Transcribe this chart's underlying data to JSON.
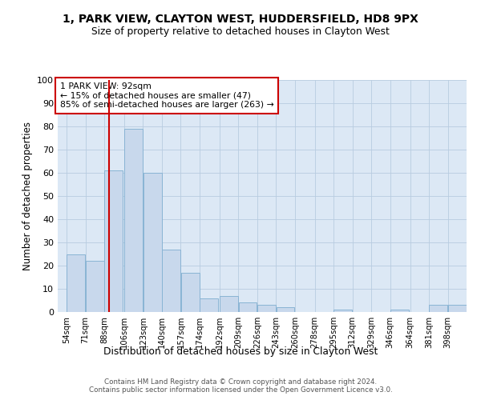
{
  "title1": "1, PARK VIEW, CLAYTON WEST, HUDDERSFIELD, HD8 9PX",
  "title2": "Size of property relative to detached houses in Clayton West",
  "xlabel": "Distribution of detached houses by size in Clayton West",
  "ylabel": "Number of detached properties",
  "categories": [
    "54sqm",
    "71sqm",
    "88sqm",
    "106sqm",
    "123sqm",
    "140sqm",
    "157sqm",
    "174sqm",
    "192sqm",
    "209sqm",
    "226sqm",
    "243sqm",
    "260sqm",
    "278sqm",
    "295sqm",
    "312sqm",
    "329sqm",
    "346sqm",
    "364sqm",
    "381sqm",
    "398sqm"
  ],
  "values": [
    25,
    22,
    61,
    79,
    60,
    27,
    17,
    6,
    7,
    4,
    3,
    2,
    0,
    0,
    1,
    0,
    0,
    1,
    0,
    3,
    3
  ],
  "bar_color": "#c8d8ec",
  "bar_edge_color": "#89b4d4",
  "property_line_x": 92,
  "property_line_color": "#cc0000",
  "annotation_text": "1 PARK VIEW: 92sqm\n← 15% of detached houses are smaller (47)\n85% of semi-detached houses are larger (263) →",
  "annotation_box_color": "#ffffff",
  "annotation_box_edge_color": "#cc0000",
  "footnote": "Contains HM Land Registry data © Crown copyright and database right 2024.\nContains public sector information licensed under the Open Government Licence v3.0.",
  "ylim": [
    0,
    100
  ],
  "bin_starts": [
    54,
    71,
    88,
    106,
    123,
    140,
    157,
    174,
    192,
    209,
    226,
    243,
    260,
    278,
    295,
    312,
    329,
    346,
    364,
    381,
    398
  ],
  "bin_width": 17,
  "xlim_left": 46,
  "xlim_right": 415,
  "bg_color": "#dce8f5"
}
